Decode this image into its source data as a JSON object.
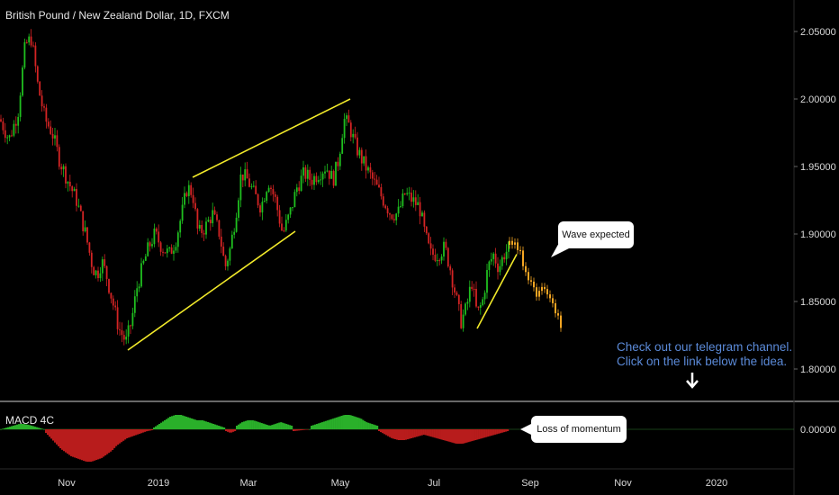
{
  "header": {
    "title": "British Pound / New Zealand Dollar, 1D, FXCM"
  },
  "indicator": {
    "label": "MACD 4C"
  },
  "callouts": {
    "wave": "Wave expected",
    "momentum": "Loss of momentum"
  },
  "telegram": {
    "line1": "Check out our telegram channel.",
    "line2": "Click on the link below the idea."
  },
  "colors": {
    "background": "#000000",
    "bull": "#1fbf1f",
    "bear": "#d42424",
    "forecast": "#f5a623",
    "trendline": "#f2ea2a",
    "macd_pos": "#2ab02a",
    "macd_neg": "#b81c1c",
    "divider": "#cfcfcf",
    "axis_text": "#d9d9d9"
  },
  "chart_data": [
    {
      "type": "candlestick",
      "title": "British Pound / New Zealand Dollar, 1D, FXCM",
      "x_tick_labels": [
        "Nov",
        "2019",
        "Mar",
        "May",
        "Jul",
        "Sep",
        "Nov",
        "2020"
      ],
      "y_tick_labels": [
        "2.05000",
        "2.00000",
        "1.95000",
        "1.90000",
        "1.85000",
        "1.80000"
      ],
      "ylim": [
        1.77,
        2.075
      ],
      "path_points": [
        [
          0,
          1.985
        ],
        [
          10,
          1.97
        ],
        [
          20,
          1.99
        ],
        [
          28,
          2.04
        ],
        [
          35,
          2.045
        ],
        [
          42,
          2.01
        ],
        [
          50,
          1.985
        ],
        [
          58,
          1.975
        ],
        [
          66,
          1.955
        ],
        [
          75,
          1.94
        ],
        [
          85,
          1.925
        ],
        [
          95,
          1.9
        ],
        [
          103,
          1.875
        ],
        [
          108,
          1.87
        ],
        [
          113,
          1.88
        ],
        [
          118,
          1.87
        ],
        [
          125,
          1.85
        ],
        [
          132,
          1.83
        ],
        [
          140,
          1.82
        ],
        [
          146,
          1.835
        ],
        [
          152,
          1.86
        ],
        [
          158,
          1.875
        ],
        [
          165,
          1.89
        ],
        [
          172,
          1.9
        ],
        [
          180,
          1.89
        ],
        [
          188,
          1.885
        ],
        [
          195,
          1.895
        ],
        [
          202,
          1.915
        ],
        [
          208,
          1.935
        ],
        [
          214,
          1.93
        ],
        [
          220,
          1.9
        ],
        [
          228,
          1.905
        ],
        [
          236,
          1.915
        ],
        [
          244,
          1.9
        ],
        [
          250,
          1.875
        ],
        [
          256,
          1.89
        ],
        [
          262,
          1.915
        ],
        [
          268,
          1.945
        ],
        [
          275,
          1.94
        ],
        [
          282,
          1.93
        ],
        [
          290,
          1.92
        ],
        [
          298,
          1.94
        ],
        [
          306,
          1.925
        ],
        [
          314,
          1.9
        ],
        [
          322,
          1.915
        ],
        [
          330,
          1.935
        ],
        [
          338,
          1.945
        ],
        [
          346,
          1.94
        ],
        [
          354,
          1.945
        ],
        [
          362,
          1.95
        ],
        [
          370,
          1.94
        ],
        [
          376,
          1.955
        ],
        [
          382,
          1.985
        ],
        [
          388,
          1.98
        ],
        [
          395,
          1.965
        ],
        [
          402,
          1.955
        ],
        [
          410,
          1.945
        ],
        [
          418,
          1.935
        ],
        [
          426,
          1.925
        ],
        [
          434,
          1.915
        ],
        [
          442,
          1.915
        ],
        [
          450,
          1.93
        ],
        [
          458,
          1.925
        ],
        [
          466,
          1.92
        ],
        [
          472,
          1.9
        ],
        [
          478,
          1.885
        ],
        [
          486,
          1.885
        ],
        [
          494,
          1.89
        ],
        [
          500,
          1.875
        ],
        [
          506,
          1.855
        ],
        [
          512,
          1.835
        ],
        [
          518,
          1.845
        ],
        [
          524,
          1.865
        ],
        [
          530,
          1.84
        ],
        [
          536,
          1.85
        ],
        [
          542,
          1.875
        ],
        [
          548,
          1.885
        ],
        [
          554,
          1.875
        ],
        [
          560,
          1.885
        ],
        [
          566,
          1.89
        ]
      ],
      "forecast_points": [
        [
          566,
          1.892
        ],
        [
          572,
          1.896
        ],
        [
          578,
          1.886
        ],
        [
          584,
          1.872
        ],
        [
          590,
          1.862
        ],
        [
          596,
          1.856
        ],
        [
          602,
          1.862
        ],
        [
          608,
          1.855
        ],
        [
          614,
          1.85
        ],
        [
          620,
          1.838
        ],
        [
          624,
          1.828
        ]
      ],
      "trendlines": [
        {
          "from": [
            142,
            1.814
          ],
          "to": [
            328,
            1.902
          ]
        },
        {
          "from": [
            214,
            1.942
          ],
          "to": [
            389,
            2.0
          ]
        },
        {
          "from": [
            530,
            1.83
          ],
          "to": [
            574,
            1.885
          ]
        }
      ]
    },
    {
      "type": "bar",
      "title": "MACD 4C",
      "y_tick_labels": [
        "0.00000"
      ],
      "zero_value": 0,
      "ylim": [
        -0.021,
        0.012
      ],
      "segments": [
        {
          "start": 0,
          "end": 50,
          "values": [
            0.0,
            0.0005,
            0.001,
            0.0015,
            0.002,
            0.0025,
            0.003,
            0.003,
            0.0028,
            0.0025,
            0.002,
            0.0015,
            0.001,
            0.0005,
            0.0
          ]
        },
        {
          "start": 50,
          "end": 170,
          "values": [
            -0.002,
            -0.005,
            -0.008,
            -0.011,
            -0.013,
            -0.015,
            -0.016,
            -0.017,
            -0.018,
            -0.018,
            -0.017,
            -0.016,
            -0.014,
            -0.012,
            -0.009,
            -0.007,
            -0.005,
            -0.004,
            -0.003,
            -0.002,
            -0.001,
            -0.0005
          ]
        },
        {
          "start": 170,
          "end": 250,
          "values": [
            0.001,
            0.003,
            0.005,
            0.007,
            0.008,
            0.008,
            0.007,
            0.006,
            0.005,
            0.005,
            0.004,
            0.003,
            0.002,
            0.001
          ]
        },
        {
          "start": 250,
          "end": 262,
          "values": [
            -0.001,
            -0.002,
            -0.001
          ]
        },
        {
          "start": 262,
          "end": 325,
          "values": [
            0.002,
            0.004,
            0.005,
            0.005,
            0.004,
            0.003,
            0.002,
            0.003,
            0.004,
            0.003,
            0.002
          ]
        },
        {
          "start": 325,
          "end": 345,
          "values": [
            -0.001,
            -0.0005,
            0.0
          ]
        },
        {
          "start": 345,
          "end": 420,
          "values": [
            0.002,
            0.003,
            0.004,
            0.005,
            0.006,
            0.007,
            0.008,
            0.008,
            0.007,
            0.006,
            0.004,
            0.003,
            0.002
          ]
        },
        {
          "start": 420,
          "end": 565,
          "values": [
            -0.001,
            -0.003,
            -0.005,
            -0.006,
            -0.006,
            -0.005,
            -0.004,
            -0.003,
            -0.004,
            -0.005,
            -0.006,
            -0.007,
            -0.008,
            -0.008,
            -0.007,
            -0.006,
            -0.005,
            -0.004,
            -0.003,
            -0.002,
            -0.001
          ]
        }
      ]
    }
  ]
}
